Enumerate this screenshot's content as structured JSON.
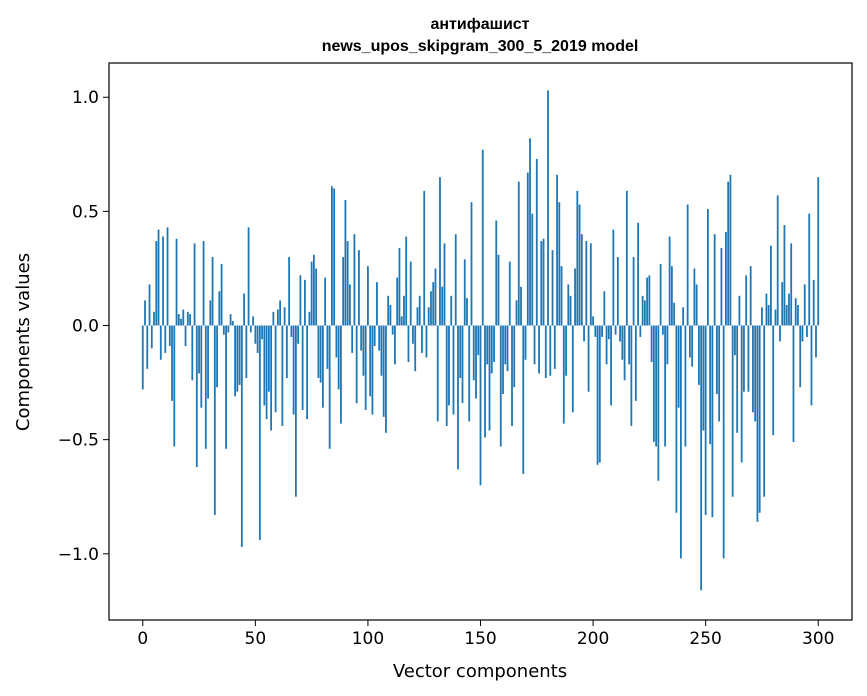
{
  "chart_data": {
    "type": "bar",
    "title_line1": "антифашист",
    "title_line2": "news_upos_skipgram_300_5_2019 model",
    "xlabel": "Vector components",
    "ylabel": "Components values",
    "xlim": [
      -15,
      315
    ],
    "ylim": [
      -1.29,
      1.15
    ],
    "xticks": [
      0,
      50,
      100,
      150,
      200,
      250,
      300
    ],
    "xtick_labels": [
      "0",
      "50",
      "100",
      "150",
      "200",
      "250",
      "300"
    ],
    "yticks": [
      -1.0,
      -0.5,
      0.0,
      0.5,
      1.0
    ],
    "ytick_labels": [
      "−1.0",
      "−0.5",
      "0.0",
      "0.5",
      "1.0"
    ],
    "bar_color": "#1f77b4",
    "values": [
      -0.28,
      0.11,
      -0.19,
      0.18,
      -0.1,
      0.06,
      0.37,
      0.42,
      -0.15,
      0.39,
      -0.12,
      0.43,
      -0.09,
      -0.33,
      -0.53,
      0.38,
      0.05,
      0.03,
      0.07,
      -0.09,
      0.06,
      0.05,
      -0.24,
      0.36,
      -0.62,
      -0.21,
      -0.36,
      0.37,
      -0.54,
      -0.32,
      0.11,
      0.3,
      -0.83,
      -0.27,
      0.15,
      0.27,
      -0.04,
      -0.54,
      -0.03,
      0.05,
      0.02,
      -0.31,
      -0.29,
      -0.26,
      -0.97,
      0.14,
      -0.23,
      0.43,
      -0.03,
      0.04,
      -0.08,
      -0.12,
      -0.94,
      -0.06,
      -0.35,
      -0.41,
      -0.29,
      -0.46,
      0.06,
      -0.38,
      0.07,
      0.11,
      -0.44,
      0.08,
      -0.23,
      0.3,
      -0.05,
      -0.39,
      -0.75,
      -0.08,
      0.22,
      -0.37,
      0.2,
      -0.41,
      0.06,
      0.28,
      0.31,
      0.25,
      -0.23,
      -0.25,
      -0.36,
      0.21,
      -0.19,
      -0.54,
      0.61,
      0.6,
      -0.14,
      -0.28,
      -0.43,
      0.3,
      0.55,
      0.37,
      0.18,
      -0.12,
      0.4,
      -0.34,
      0.33,
      -0.11,
      -0.22,
      -0.37,
      0.26,
      -0.31,
      -0.39,
      -0.09,
      0.19,
      -0.11,
      -0.22,
      -0.4,
      -0.47,
      0.13,
      0.09,
      -0.04,
      -0.17,
      0.21,
      0.34,
      0.04,
      0.13,
      0.39,
      -0.16,
      0.28,
      -0.08,
      -0.2,
      0.08,
      0.13,
      -0.12,
      0.59,
      -0.14,
      0.08,
      0.15,
      0.19,
      0.25,
      -0.42,
      0.65,
      0.17,
      0.36,
      -0.44,
      -0.35,
      0.13,
      -0.39,
      0.4,
      -0.63,
      -0.23,
      -0.34,
      0.29,
      0.12,
      -0.42,
      0.54,
      -0.24,
      -0.32,
      -0.13,
      -0.7,
      0.77,
      -0.49,
      -0.17,
      -0.46,
      -0.21,
      -0.16,
      0.46,
      0.31,
      -0.53,
      -0.3,
      -0.17,
      -0.2,
      0.28,
      -0.44,
      -0.27,
      0.11,
      0.63,
      0.17,
      -0.65,
      -0.15,
      0.67,
      0.82,
      0.49,
      -0.17,
      0.73,
      -0.21,
      0.37,
      0.38,
      -0.23,
      1.03,
      -0.22,
      0.33,
      -0.19,
      0.66,
      0.54,
      0.26,
      -0.43,
      -0.22,
      0.18,
      0.13,
      -0.38,
      0.25,
      0.59,
      0.53,
      0.4,
      -0.07,
      0.37,
      -0.29,
      0.36,
      0.04,
      -0.05,
      -0.61,
      -0.6,
      -0.05,
      0.15,
      -0.17,
      -0.06,
      -0.35,
      0.42,
      -0.04,
      0.3,
      -0.07,
      -0.15,
      -0.24,
      0.59,
      -0.17,
      -0.44,
      0.3,
      -0.33,
      0.45,
      -0.05,
      0.13,
      0.11,
      0.21,
      0.22,
      -0.16,
      -0.51,
      -0.53,
      -0.68,
      0.27,
      -0.04,
      -0.53,
      -0.17,
      0.39,
      0.26,
      0.1,
      -0.82,
      -0.36,
      -1.02,
      0.08,
      -0.53,
      0.53,
      -0.14,
      -0.18,
      0.25,
      0.18,
      -0.26,
      -1.16,
      -0.46,
      -0.83,
      0.51,
      -0.52,
      -0.84,
      0.4,
      -0.3,
      -0.42,
      0.34,
      -1.02,
      0.41,
      0.63,
      0.66,
      -0.75,
      -0.13,
      -0.47,
      0.13,
      -0.6,
      -0.29,
      0.22,
      -0.29,
      0.26,
      -0.38,
      -0.42,
      -0.86,
      -0.82,
      0.08,
      -0.75,
      0.14,
      0.09,
      0.35,
      -0.48,
      0.07,
      0.57,
      -0.07,
      0.19,
      0.44,
      0.09,
      0.14,
      0.36,
      -0.51,
      0.12,
      0.09,
      -0.27,
      -0.07,
      0.18,
      -0.05,
      0.49,
      -0.35,
      0.2,
      -0.14,
      0.65
    ]
  }
}
